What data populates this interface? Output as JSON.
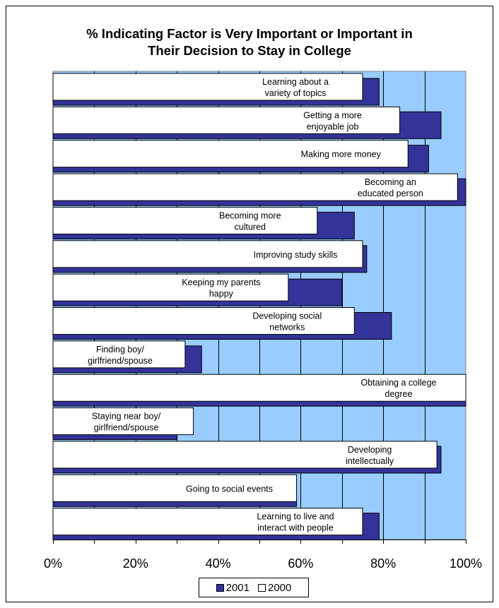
{
  "chart_data": {
    "type": "bar",
    "orientation": "horizontal",
    "title": "% Indicating Factor is Very Important or Important in Their Decision to Stay in College",
    "title_lines": [
      "% Indicating Factor is Very Important or Important in",
      "Their Decision to Stay in College"
    ],
    "categories": [
      "Learning about a variety of topics",
      "Getting a more enjoyable job",
      "Making more money",
      "Becoming an educated person",
      "Becoming more cultured",
      "Improving study skills",
      "Keeping my parents happy",
      "Developing social networks",
      "Finding boy/ girlfriend/spouse",
      "Obtaining a college degree",
      "Staying near boy/ girlfriend/spouse",
      "Developing intellectually",
      "Going to social events",
      "Learning to live and interact with people"
    ],
    "category_label_lines": [
      [
        "Learning about a",
        "variety of topics"
      ],
      [
        "Getting a more",
        "enjoyable job"
      ],
      [
        "Making more money"
      ],
      [
        "Becoming an",
        "educated person"
      ],
      [
        "Becoming more",
        "cultured"
      ],
      [
        "Improving study skills"
      ],
      [
        "Keeping my parents",
        "happy"
      ],
      [
        "Developing social",
        "networks"
      ],
      [
        "Finding boy/",
        "girlfriend/spouse"
      ],
      [
        "Obtaining a  college",
        "degree"
      ],
      [
        "Staying near boy/",
        "girlfriend/spouse"
      ],
      [
        "Developing",
        "intellectually"
      ],
      [
        "Going to social events"
      ],
      [
        "Learning to live and",
        "interact with people"
      ]
    ],
    "series": [
      {
        "name": "2001",
        "color": "#333399",
        "values": [
          79,
          94,
          91,
          100,
          73,
          76,
          70,
          82,
          36,
          100,
          30,
          94,
          59,
          79
        ]
      },
      {
        "name": "2000",
        "color": "#ffffff",
        "values": [
          75,
          84,
          86,
          98,
          64,
          75,
          57,
          73,
          32,
          100,
          34,
          93,
          59,
          75
        ]
      }
    ],
    "xlim": [
      0,
      100
    ],
    "x_ticks": [
      "0%",
      "20%",
      "40%",
      "60%",
      "80%",
      "100%"
    ],
    "grid": true,
    "plot_background": "#99ccff",
    "legend_position": "bottom"
  }
}
